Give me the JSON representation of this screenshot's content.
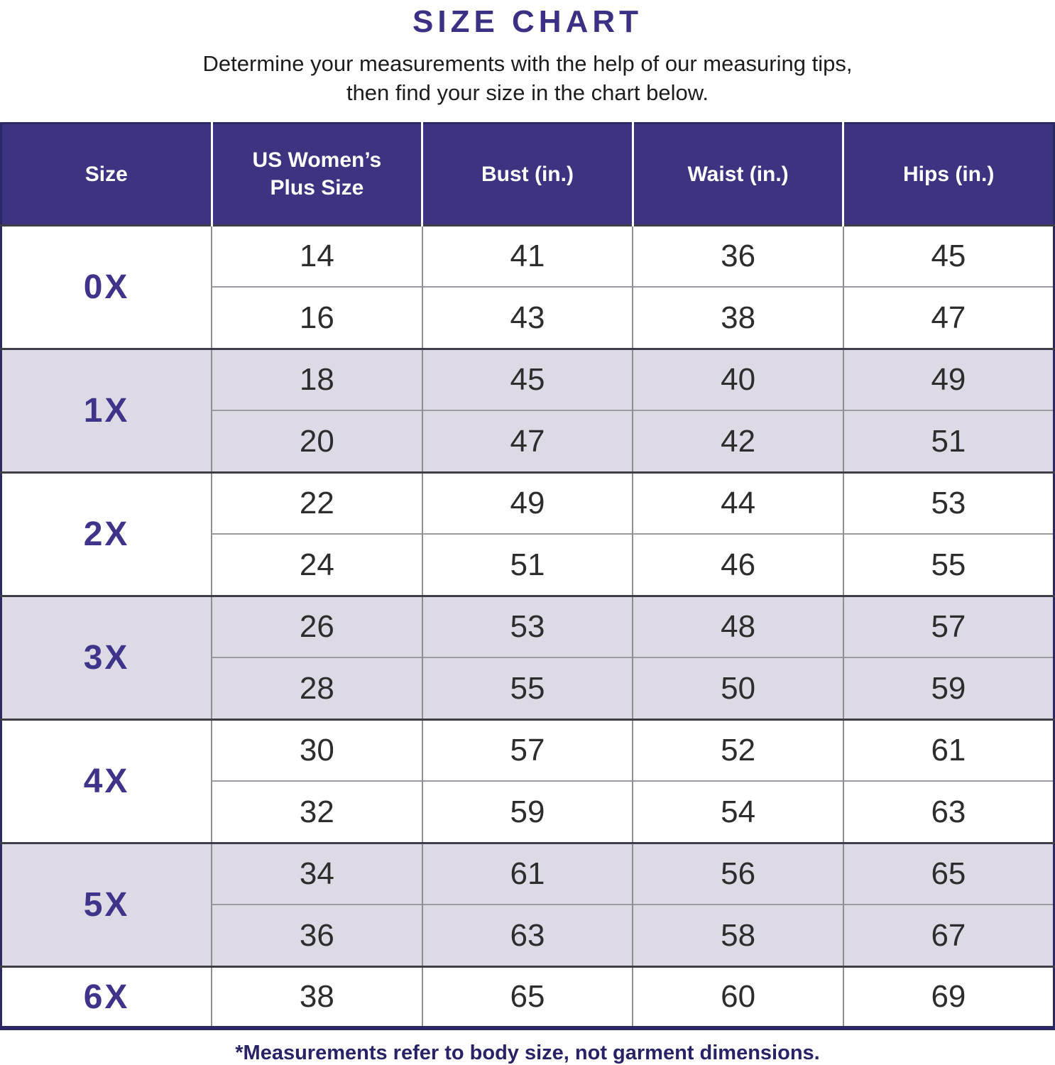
{
  "accent_color": "#3c3480",
  "band_color": "#dedae5",
  "header": {
    "title": "SIZE CHART",
    "subtitle_line1": "Determine your measurements with the help of our measuring tips,",
    "subtitle_line2": "then find your size in the chart below."
  },
  "table": {
    "columns": [
      "Size",
      "US Women’s Plus Size",
      "Bust (in.)",
      "Waist (in.)",
      "Hips (in.)"
    ],
    "groups": [
      {
        "size": "0X",
        "rows": [
          [
            "14",
            "41",
            "36",
            "45"
          ],
          [
            "16",
            "43",
            "38",
            "47"
          ]
        ]
      },
      {
        "size": "1X",
        "rows": [
          [
            "18",
            "45",
            "40",
            "49"
          ],
          [
            "20",
            "47",
            "42",
            "51"
          ]
        ]
      },
      {
        "size": "2X",
        "rows": [
          [
            "22",
            "49",
            "44",
            "53"
          ],
          [
            "24",
            "51",
            "46",
            "55"
          ]
        ]
      },
      {
        "size": "3X",
        "rows": [
          [
            "26",
            "53",
            "48",
            "57"
          ],
          [
            "28",
            "55",
            "50",
            "59"
          ]
        ]
      },
      {
        "size": "4X",
        "rows": [
          [
            "30",
            "57",
            "52",
            "61"
          ],
          [
            "32",
            "59",
            "54",
            "63"
          ]
        ]
      },
      {
        "size": "5X",
        "rows": [
          [
            "34",
            "61",
            "56",
            "65"
          ],
          [
            "36",
            "63",
            "58",
            "67"
          ]
        ]
      },
      {
        "size": "6X",
        "rows": [
          [
            "38",
            "65",
            "60",
            "69"
          ]
        ]
      }
    ]
  },
  "footnote": "*Measurements refer to body size, not garment dimensions.",
  "chart_data": {
    "type": "table",
    "title": "SIZE CHART",
    "columns": [
      "Size",
      "US Women’s Plus Size",
      "Bust (in.)",
      "Waist (in.)",
      "Hips (in.)"
    ],
    "rows": [
      [
        "0X",
        14,
        41,
        36,
        45
      ],
      [
        "0X",
        16,
        43,
        38,
        47
      ],
      [
        "1X",
        18,
        45,
        40,
        49
      ],
      [
        "1X",
        20,
        47,
        42,
        51
      ],
      [
        "2X",
        22,
        49,
        44,
        53
      ],
      [
        "2X",
        24,
        51,
        46,
        55
      ],
      [
        "3X",
        26,
        53,
        48,
        57
      ],
      [
        "3X",
        28,
        55,
        50,
        59
      ],
      [
        "4X",
        30,
        57,
        52,
        61
      ],
      [
        "4X",
        32,
        59,
        54,
        63
      ],
      [
        "5X",
        34,
        61,
        56,
        65
      ],
      [
        "5X",
        36,
        63,
        58,
        67
      ],
      [
        "6X",
        38,
        65,
        60,
        69
      ]
    ]
  }
}
